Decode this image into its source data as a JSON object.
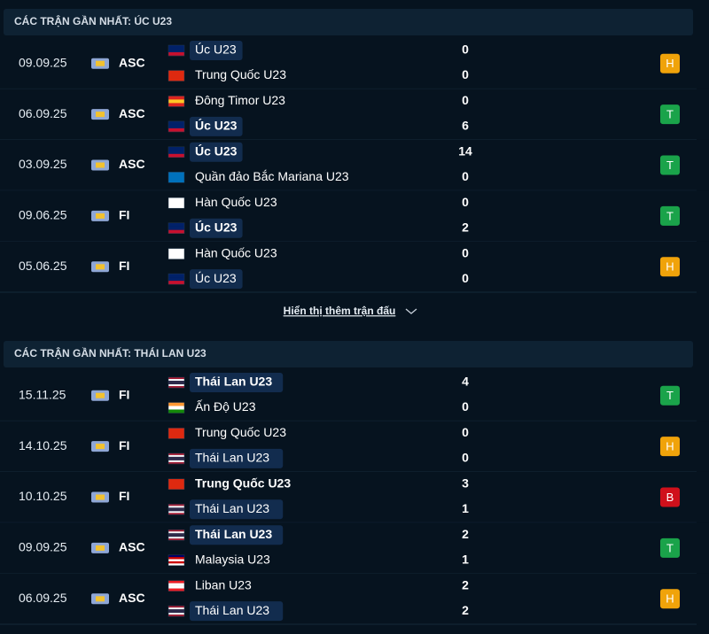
{
  "sections": [
    {
      "title": "CÁC TRẬN GẦN NHẤT: ÚC U23",
      "more": "Hiển thị thêm trận đấu",
      "matches": [
        {
          "date": "09.09.25",
          "competition": "ASC",
          "result": {
            "label": "H",
            "color": "#f0a30a"
          },
          "teams": [
            {
              "name": "Úc U23",
              "score": "0",
              "highlight": true,
              "bold": false,
              "flag": [
                "#012169",
                "#012169",
                "#c8102e"
              ]
            },
            {
              "name": "Trung Quốc U23",
              "score": "0",
              "highlight": false,
              "bold": false,
              "flag": [
                "#de2910"
              ]
            }
          ]
        },
        {
          "date": "06.09.25",
          "competition": "ASC",
          "result": {
            "label": "T",
            "color": "#1aa34a"
          },
          "teams": [
            {
              "name": "Đông Timor U23",
              "score": "0",
              "highlight": false,
              "bold": false,
              "flag": [
                "#dc241f",
                "#ffc726",
                "#dc241f"
              ]
            },
            {
              "name": "Úc U23",
              "score": "6",
              "highlight": true,
              "bold": true,
              "flag": [
                "#012169",
                "#012169",
                "#c8102e"
              ]
            }
          ]
        },
        {
          "date": "03.09.25",
          "competition": "ASC",
          "result": {
            "label": "T",
            "color": "#1aa34a"
          },
          "teams": [
            {
              "name": "Úc U23",
              "score": "14",
              "highlight": true,
              "bold": true,
              "flag": [
                "#012169",
                "#012169",
                "#c8102e"
              ]
            },
            {
              "name": "Quần đảo Bắc Mariana U23",
              "score": "0",
              "highlight": false,
              "bold": false,
              "flag": [
                "#0071bc"
              ]
            }
          ]
        },
        {
          "date": "09.06.25",
          "competition": "FI",
          "result": {
            "label": "T",
            "color": "#1aa34a"
          },
          "teams": [
            {
              "name": "Hàn Quốc U23",
              "score": "0",
              "highlight": false,
              "bold": false,
              "flag": [
                "#ffffff"
              ]
            },
            {
              "name": "Úc U23",
              "score": "2",
              "highlight": true,
              "bold": true,
              "flag": [
                "#012169",
                "#012169",
                "#c8102e"
              ]
            }
          ]
        },
        {
          "date": "05.06.25",
          "competition": "FI",
          "result": {
            "label": "H",
            "color": "#f0a30a"
          },
          "teams": [
            {
              "name": "Hàn Quốc U23",
              "score": "0",
              "highlight": false,
              "bold": false,
              "flag": [
                "#ffffff"
              ]
            },
            {
              "name": "Úc U23",
              "score": "0",
              "highlight": true,
              "bold": false,
              "flag": [
                "#012169",
                "#012169",
                "#c8102e"
              ]
            }
          ]
        }
      ]
    },
    {
      "title": "CÁC TRẬN GẦN NHẤT: THÁI LAN U23",
      "matches": [
        {
          "date": "15.11.25",
          "competition": "FI",
          "result": {
            "label": "T",
            "color": "#1aa34a"
          },
          "teams": [
            {
              "name": "Thái Lan U23",
              "score": "4",
              "highlight": true,
              "bold": true,
              "flag": [
                "#a51931",
                "#f4f5f8",
                "#2d2a4a",
                "#2d2a4a",
                "#f4f5f8",
                "#a51931"
              ]
            },
            {
              "name": "Ấn Độ U23",
              "score": "0",
              "highlight": false,
              "bold": false,
              "flag": [
                "#ff9933",
                "#ffffff",
                "#138808"
              ]
            }
          ]
        },
        {
          "date": "14.10.25",
          "competition": "FI",
          "result": {
            "label": "H",
            "color": "#f0a30a"
          },
          "teams": [
            {
              "name": "Trung Quốc U23",
              "score": "0",
              "highlight": false,
              "bold": false,
              "flag": [
                "#de2910"
              ]
            },
            {
              "name": "Thái Lan U23",
              "score": "0",
              "highlight": true,
              "bold": false,
              "flag": [
                "#a51931",
                "#f4f5f8",
                "#2d2a4a",
                "#2d2a4a",
                "#f4f5f8",
                "#a51931"
              ]
            }
          ]
        },
        {
          "date": "10.10.25",
          "competition": "FI",
          "result": {
            "label": "B",
            "color": "#d0101b"
          },
          "teams": [
            {
              "name": "Trung Quốc U23",
              "score": "3",
              "highlight": false,
              "bold": true,
              "flag": [
                "#de2910"
              ]
            },
            {
              "name": "Thái Lan U23",
              "score": "1",
              "highlight": true,
              "bold": false,
              "flag": [
                "#a51931",
                "#f4f5f8",
                "#2d2a4a",
                "#2d2a4a",
                "#f4f5f8",
                "#a51931"
              ]
            }
          ]
        },
        {
          "date": "09.09.25",
          "competition": "ASC",
          "result": {
            "label": "T",
            "color": "#1aa34a"
          },
          "teams": [
            {
              "name": "Thái Lan U23",
              "score": "2",
              "highlight": true,
              "bold": true,
              "flag": [
                "#a51931",
                "#f4f5f8",
                "#2d2a4a",
                "#2d2a4a",
                "#f4f5f8",
                "#a51931"
              ]
            },
            {
              "name": "Malaysia U23",
              "score": "1",
              "highlight": false,
              "bold": false,
              "flag": [
                "#010066",
                "#cc0001",
                "#ffffff",
                "#cc0001",
                "#ffffff"
              ]
            }
          ]
        },
        {
          "date": "06.09.25",
          "competition": "ASC",
          "result": {
            "label": "H",
            "color": "#f0a30a"
          },
          "teams": [
            {
              "name": "Liban U23",
              "score": "2",
              "highlight": false,
              "bold": false,
              "flag": [
                "#ed1c24",
                "#ffffff",
                "#ffffff",
                "#ed1c24"
              ]
            },
            {
              "name": "Thái Lan U23",
              "score": "2",
              "highlight": true,
              "bold": false,
              "flag": [
                "#a51931",
                "#f4f5f8",
                "#2d2a4a",
                "#2d2a4a",
                "#f4f5f8",
                "#a51931"
              ]
            }
          ]
        }
      ]
    }
  ]
}
